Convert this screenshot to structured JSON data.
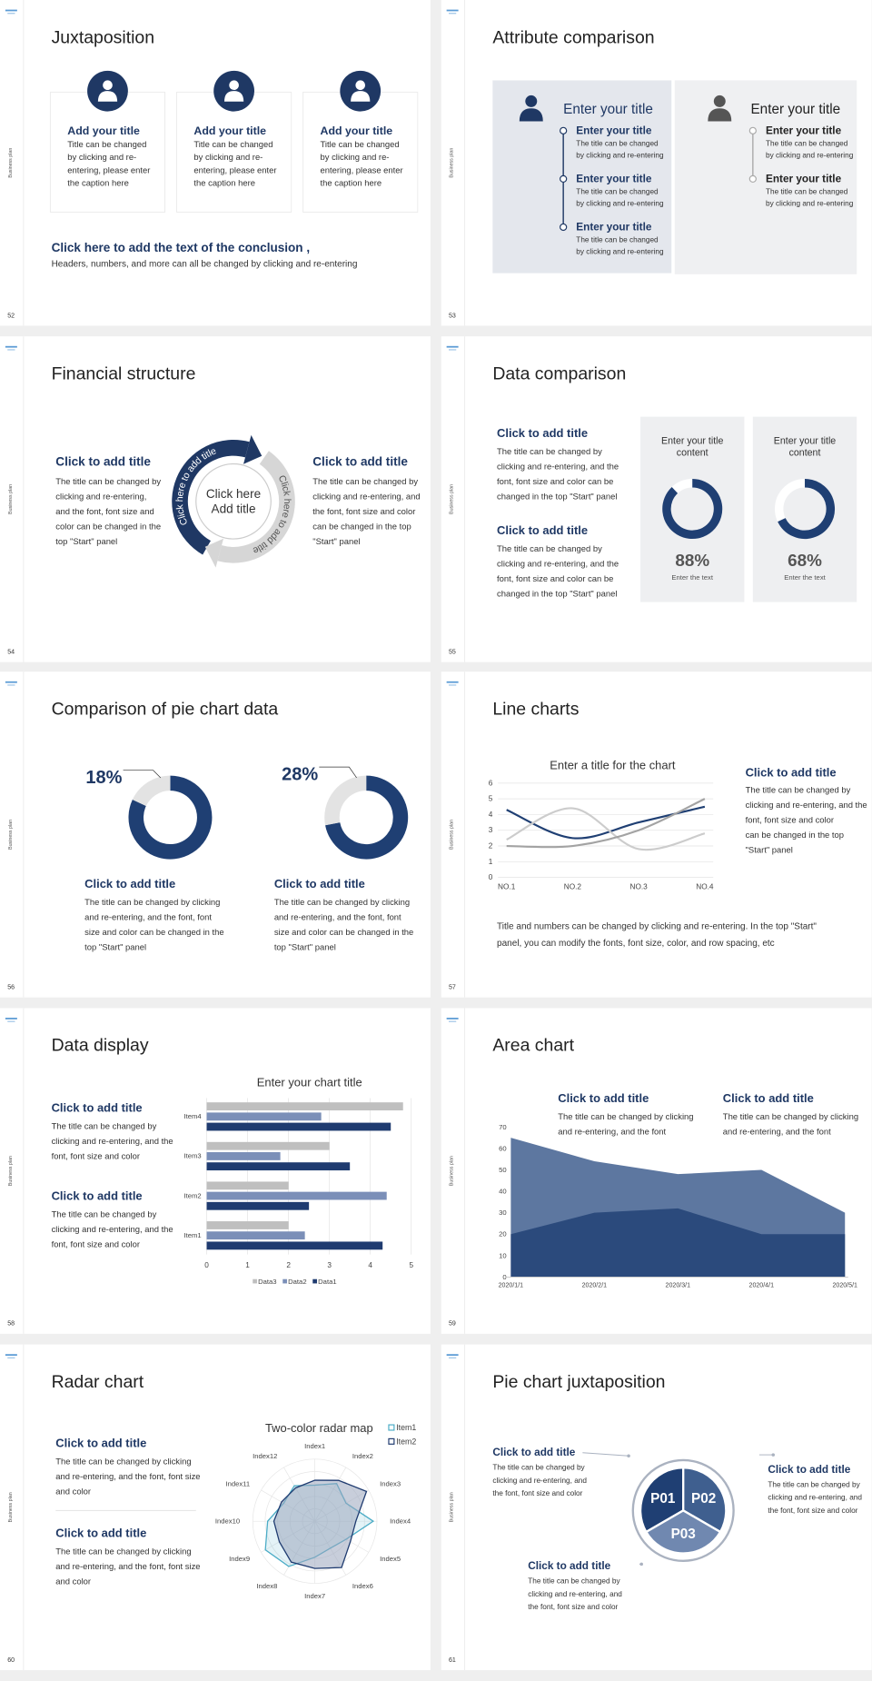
{
  "slides": [
    {
      "number": "52",
      "side": "Business plan",
      "title": "Juxtaposition",
      "cards": [
        {
          "title": "Add your title",
          "lines": [
            "Title can be changed",
            "by clicking and re-",
            "entering, please enter",
            "the caption here"
          ]
        },
        {
          "title": "Add your title",
          "lines": [
            "Title can be changed",
            "by clicking and re-",
            "entering, please enter",
            "the caption here"
          ]
        },
        {
          "title": "Add your title",
          "lines": [
            "Title can be changed",
            "by clicking and re-",
            "entering, please enter",
            "the caption here"
          ]
        }
      ],
      "conclusion_title": "Click here to add the text of the conclusion ,",
      "conclusion_text": "Headers, numbers, and more can all be changed by clicking and re-entering"
    },
    {
      "number": "53",
      "side": "Business plan",
      "title": "Attribute comparison",
      "panels": [
        {
          "heading": "Enter your title",
          "items": [
            {
              "title": "Enter your title",
              "lines": [
                "The title can be changed",
                "by clicking and re-entering"
              ]
            },
            {
              "title": "Enter your title",
              "lines": [
                "The title can be changed",
                "by clicking and re-entering"
              ]
            },
            {
              "title": "Enter your title",
              "lines": [
                "The title can be changed",
                "by clicking and re-entering"
              ]
            }
          ]
        },
        {
          "heading": "Enter your title",
          "items": [
            {
              "title": "Enter your title",
              "lines": [
                "The title can be changed",
                "by clicking and re-entering"
              ]
            },
            {
              "title": "Enter your title",
              "lines": [
                "The title can be changed",
                "by clicking and re-entering"
              ]
            }
          ]
        }
      ]
    },
    {
      "number": "54",
      "side": "Business plan",
      "title": "Financial structure",
      "blocks": [
        {
          "title": "Click to add title",
          "lines": [
            "The title can be changed by",
            "clicking and re-entering,",
            "and the font, font size and",
            "color can be changed in the",
            "top \"Start\" panel"
          ]
        },
        {
          "title": "Click to add title",
          "lines": [
            "The title can be changed by",
            "clicking and re-entering, and",
            "the font, font size and color",
            "can be changed in the top",
            "\"Start\" panel"
          ]
        }
      ],
      "center": [
        "Click here",
        "Add title"
      ],
      "arc_left": "Click here to add title",
      "arc_right": "Click here to add title"
    },
    {
      "number": "55",
      "side": "Business plan",
      "title": "Data comparison",
      "blocks": [
        {
          "title": "Click to add title",
          "lines": [
            "The title can be changed by",
            "clicking and re-entering, and the",
            "font, font size and color can be",
            "changed in the top \"Start\" panel"
          ]
        },
        {
          "title": "Click to add title",
          "lines": [
            "The title can be changed by",
            "clicking and re-entering, and the",
            "font, font size and color can be",
            "changed in the top \"Start\" panel"
          ]
        }
      ],
      "cards": [
        {
          "title": [
            "Enter your title",
            "content"
          ],
          "caption": "Enter the text"
        },
        {
          "title": [
            "Enter your title",
            "content"
          ],
          "caption": "Enter the text"
        }
      ]
    },
    {
      "number": "56",
      "side": "Business plan",
      "title": "Comparison of pie chart data",
      "blocks": [
        {
          "title": "Click to add title",
          "lines": [
            "The title can be changed by clicking",
            "and re-entering, and the font, font",
            "size and color can be changed in the",
            "top \"Start\" panel"
          ]
        },
        {
          "title": "Click to add title",
          "lines": [
            "The title can be changed by clicking",
            "and re-entering, and the font, font",
            "size and color can be changed in the",
            "top \"Start\" panel"
          ]
        }
      ]
    },
    {
      "number": "57",
      "side": "Business plan",
      "title": "Line charts",
      "block": {
        "title": "Click to add title",
        "lines": [
          "The title can be changed by",
          "clicking and re-entering, and the",
          "font, font size and color",
          "can be changed in the top",
          "\"Start\" panel"
        ]
      },
      "note": [
        "Title and numbers can be changed by clicking and re-entering. In the top \"Start\"",
        "panel, you can modify the fonts, font size, color, and row spacing, etc"
      ]
    },
    {
      "number": "58",
      "side": "Business plan",
      "title": "Data display",
      "blocks": [
        {
          "title": "Click to add title",
          "lines": [
            "The title can be changed by",
            "clicking and re-entering, and the",
            "font, font size and color"
          ]
        },
        {
          "title": "Click to add title",
          "lines": [
            "The title can be changed by",
            "clicking and re-entering, and the",
            "font, font size and color"
          ]
        }
      ]
    },
    {
      "number": "59",
      "side": "Business plan",
      "title": "Area chart",
      "blocks": [
        {
          "title": "Click to add title",
          "lines": [
            "The title can be changed by clicking",
            "and re-entering, and the font"
          ]
        },
        {
          "title": "Click to add title",
          "lines": [
            "The title can be changed by clicking",
            "and re-entering, and the font"
          ]
        }
      ]
    },
    {
      "number": "60",
      "side": "Business plan",
      "title": "Radar chart",
      "blocks": [
        {
          "title": "Click to add title",
          "lines": [
            "The title can be changed by clicking",
            "and re-entering, and the font, font size",
            "and color"
          ]
        },
        {
          "title": "Click to add title",
          "lines": [
            "The title can be changed by clicking",
            "and re-entering, and the font, font size",
            "and color"
          ]
        }
      ]
    },
    {
      "number": "61",
      "side": "Business plan",
      "title": "Pie chart juxtaposition",
      "segments": [
        "P01",
        "P02",
        "P03"
      ],
      "blocks": [
        {
          "title": "Click to add title",
          "lines": [
            "The title can be changed by",
            "clicking and re-entering, and",
            "the font, font size and color"
          ]
        },
        {
          "title": "Click to add title",
          "lines": [
            "The title can be changed by",
            "clicking and re-entering, and",
            "the font, font size and color"
          ]
        },
        {
          "title": "Click to add title",
          "lines": [
            "The title can be changed by",
            "clicking and re-entering, and",
            "the font, font size and color"
          ]
        }
      ]
    }
  ],
  "chart_data": [
    {
      "type": "donut",
      "values": [
        88,
        68
      ],
      "value_labels": [
        "88%",
        "68%"
      ],
      "color": "#1f3f73"
    },
    {
      "type": "donut",
      "values": [
        18,
        28
      ],
      "value_labels": [
        "18%",
        "28%"
      ],
      "color": "#e3e3e3"
    },
    {
      "type": "line",
      "title": "Enter a title for the chart",
      "categories": [
        "NO.1",
        "NO.2",
        "NO.3",
        "NO.4"
      ],
      "series": [
        {
          "color": "#1f3f73",
          "values": [
            4.3,
            2.5,
            3.5,
            4.5
          ]
        },
        {
          "color": "#cccccc",
          "values": [
            2.4,
            4.4,
            1.8,
            2.8
          ]
        },
        {
          "color": "#a3a3a3",
          "values": [
            2,
            2,
            3,
            5
          ]
        }
      ],
      "ylim": [
        0,
        6
      ],
      "yticks": [
        0,
        1,
        2,
        3,
        4,
        5,
        6
      ],
      "grid": true
    },
    {
      "type": "hbar",
      "title": "Enter your chart title",
      "categories": [
        "Item1",
        "Item2",
        "Item3",
        "Item4"
      ],
      "series": [
        {
          "name": "Data3",
          "color": "#bfbfbf",
          "values": [
            2,
            2,
            3,
            4.8
          ]
        },
        {
          "name": "Data2",
          "color": "#7b8fb8",
          "values": [
            2.4,
            4.4,
            1.8,
            2.8
          ]
        },
        {
          "name": "Data1",
          "color": "#1f3b70",
          "values": [
            4.3,
            2.5,
            3.5,
            4.5
          ]
        }
      ],
      "xlim": [
        0,
        5
      ],
      "xticks": [
        0,
        1,
        2,
        3,
        4,
        5
      ],
      "grid": true
    },
    {
      "type": "area",
      "categories": [
        "2020/1/1",
        "2020/2/1",
        "2020/3/1",
        "2020/4/1",
        "2020/5/1"
      ],
      "series": [
        {
          "color": "#5d77a0",
          "values": [
            65,
            54,
            48,
            50,
            30
          ]
        },
        {
          "color": "#2b4a7c",
          "values": [
            20,
            30,
            32,
            20,
            20
          ]
        }
      ],
      "ylim": [
        0,
        70
      ],
      "yticks": [
        0,
        10,
        20,
        30,
        40,
        50,
        60,
        70
      ],
      "grid": false
    },
    {
      "type": "radar",
      "title": "Two-color radar map",
      "categories": [
        "Index1",
        "Index2",
        "Index3",
        "Index4",
        "Index5",
        "Index6",
        "Index7",
        "Index8",
        "Index9",
        "Index10",
        "Index11",
        "Index12"
      ],
      "series": [
        {
          "name": "Item1",
          "color": "#4bacc6",
          "values": [
            2.9,
            3.5,
            2.9,
            4.7,
            2.9,
            2.5,
            2.9,
            4.2,
            4.6,
            3.8,
            2.9,
            3.3
          ]
        },
        {
          "name": "Item2",
          "color": "#1f3b70",
          "values": [
            3.3,
            3.8,
            4.8,
            3.3,
            3.3,
            4.3,
            3.8,
            3.8,
            3.3,
            3.3,
            3.1,
            3.1
          ]
        }
      ],
      "rlim": [
        0,
        5
      ]
    }
  ]
}
